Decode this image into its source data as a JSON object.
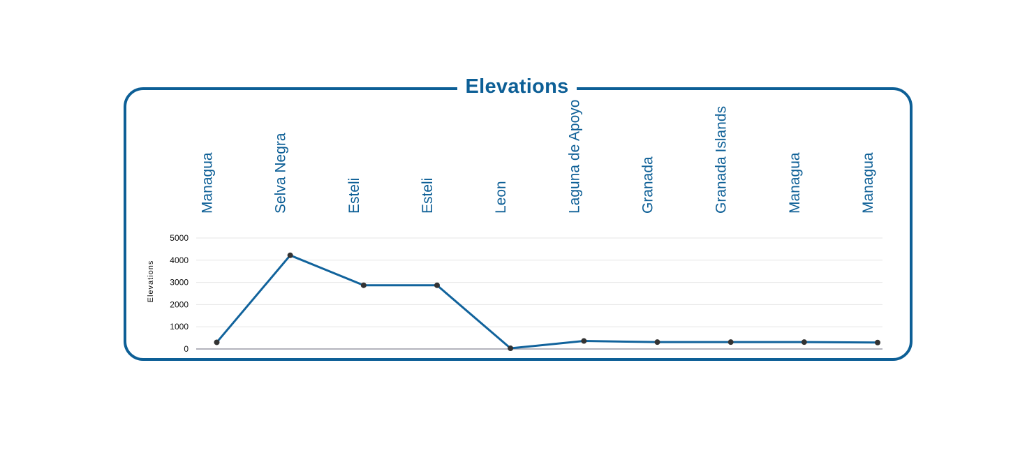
{
  "title": "Elevations",
  "colors": {
    "accent": "#0d5f96",
    "line": "#11639c",
    "marker": "#333333",
    "grid": "#e6e6e6",
    "baseline": "#9a9aa6",
    "text": "#111111"
  },
  "chart_data": {
    "type": "line",
    "title": "Elevations",
    "xlabel": "",
    "ylabel": "Elevations",
    "ylim": [
      0,
      5000
    ],
    "yticks": [
      0,
      1000,
      2000,
      3000,
      4000,
      5000
    ],
    "grid": true,
    "categories": [
      "Managua",
      "Selva Negra",
      "Esteli",
      "Esteli",
      "Leon",
      "Laguna de Apoyo",
      "Granada",
      "Granada Islands",
      "Managua",
      "Managua"
    ],
    "series": [
      {
        "values": [
          300,
          4220,
          2870,
          2870,
          30,
          360,
          310,
          310,
          310,
          290
        ]
      }
    ]
  }
}
